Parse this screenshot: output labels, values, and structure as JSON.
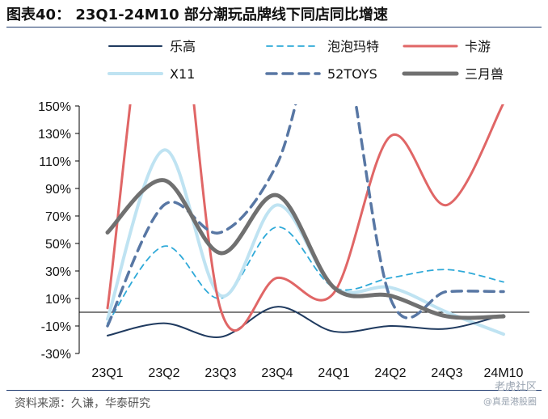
{
  "title": "图表40： 23Q1-24M10 部分潮玩品牌线下同店同比增速",
  "source": "资料来源：久谦，华泰研究",
  "watermark": {
    "line1": "老虎社区",
    "line2": "@真是港股圈"
  },
  "colors": {
    "header_rule": "#1f3a6e"
  },
  "chart_data": {
    "type": "line",
    "title": "",
    "xlabel": "",
    "ylabel": "",
    "categories": [
      "23Q1",
      "23Q2",
      "23Q3",
      "23Q4",
      "24Q1",
      "24Q2",
      "24Q3",
      "24M10"
    ],
    "y_tick_labels": [
      "150%",
      "130%",
      "110%",
      "90%",
      "70%",
      "50%",
      "30%",
      "10%",
      "-10%",
      "-30%"
    ],
    "ylim": [
      -30,
      150
    ],
    "grid": false,
    "legend_position": "top",
    "series": [
      {
        "name": "乐高",
        "color": "#1f3a5f",
        "style": "solid",
        "width": 2,
        "values": [
          -17,
          -8,
          -18,
          4,
          -14,
          -10,
          -12,
          -2
        ]
      },
      {
        "name": "泡泡玛特",
        "color": "#2ea9d8",
        "style": "dashed",
        "width": 1.8,
        "values": [
          -8,
          48,
          10,
          62,
          18,
          25,
          31,
          22
        ]
      },
      {
        "name": "卡游",
        "color": "#e06666",
        "style": "solid",
        "width": 3,
        "values": [
          3,
          290,
          2,
          25,
          14,
          128,
          78,
          152
        ]
      },
      {
        "name": "X11",
        "color": "#bfe3f2",
        "style": "solid",
        "width": 4,
        "values": [
          -5,
          118,
          12,
          78,
          18,
          18,
          0,
          -16
        ]
      },
      {
        "name": "52TOYS",
        "color": "#5877a4",
        "style": "dashed",
        "width": 3.5,
        "values": [
          -10,
          78,
          58,
          108,
          220,
          10,
          15,
          15
        ]
      },
      {
        "name": "三月兽",
        "color": "#707070",
        "style": "solid",
        "width": 5,
        "values": [
          58,
          96,
          43,
          85,
          18,
          12,
          -3,
          -3
        ]
      }
    ]
  }
}
